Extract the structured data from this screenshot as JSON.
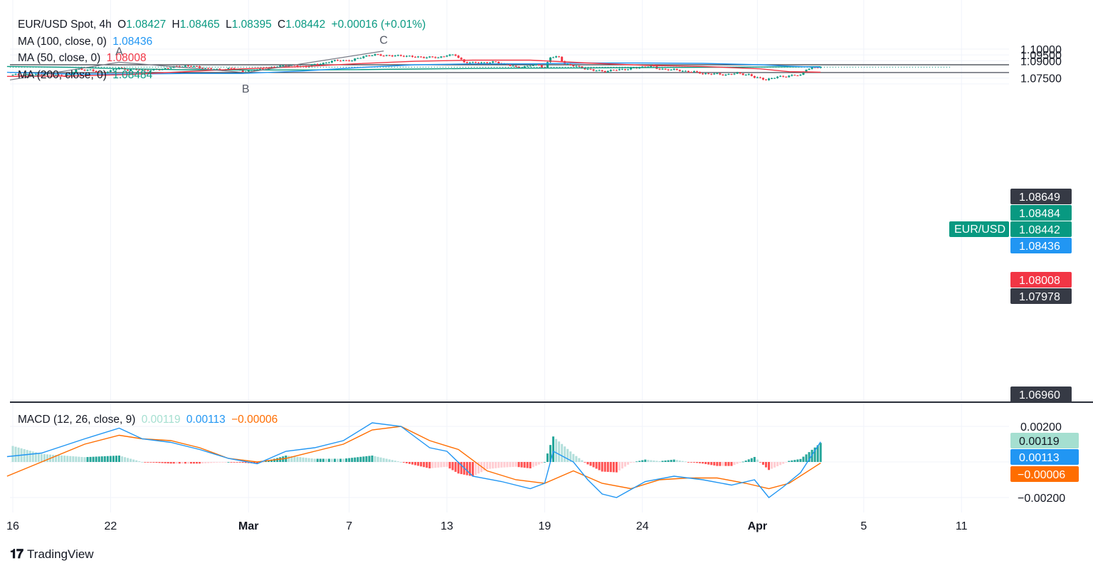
{
  "header": {
    "symbol": "EUR/USD Spot, 4h",
    "ohlc": [
      {
        "label": "O",
        "value": "1.08427"
      },
      {
        "label": "H",
        "value": "1.08465"
      },
      {
        "label": "L",
        "value": "1.08395"
      },
      {
        "label": "C",
        "value": "1.08442"
      }
    ],
    "change": "+0.00016 (+0.01%)"
  },
  "indicators": [
    {
      "label": "MA (100, close, 0)",
      "value": "1.08436",
      "color": "#2196f3"
    },
    {
      "label": "MA (50, close, 0)",
      "value": "1.08008",
      "color": "#f23645"
    },
    {
      "label": "MA (200, close, 0)",
      "value": "1.08484",
      "color": "#089981"
    }
  ],
  "macd": {
    "label": "MACD (12, 26, close, 9)",
    "hist_value": "0.00119",
    "macd_value": "0.00113",
    "signal_value": "−0.00006",
    "colors": {
      "hist": "#a5dfd0",
      "macd": "#2196f3",
      "signal": "#ff6d00"
    }
  },
  "price_axis": [
    "1.10000",
    "1.09500",
    "1.09000",
    "1.07500"
  ],
  "price_tags": [
    {
      "text": "1.08649",
      "bg": "#363a45",
      "y": 1.08649
    },
    {
      "text": "1.08484",
      "bg": "#089981",
      "y": 1.08484
    },
    {
      "text": "1.08442",
      "bg": "#089981",
      "y": 1.08442
    },
    {
      "text": "1.08436",
      "bg": "#2196f3",
      "y": 1.08436
    },
    {
      "text": "1.08008",
      "bg": "#f23645",
      "y": 1.08008
    },
    {
      "text": "1.07978",
      "bg": "#363a45",
      "y": 1.07978
    },
    {
      "text": "1.06960",
      "bg": "#363a45",
      "y": 1.0696
    }
  ],
  "symbol_tag": "EUR/USD",
  "macd_axis": [
    "0.00200",
    "−0.00200"
  ],
  "macd_tags": [
    {
      "text": "0.00119",
      "bg": "#a5dfd0",
      "fg": "#131722",
      "y": 0.00119
    },
    {
      "text": "0.00113",
      "bg": "#2196f3",
      "fg": "#ffffff",
      "y": 0.00113
    },
    {
      "text": "−0.00006",
      "bg": "#ff6d00",
      "fg": "#ffffff",
      "y": -6e-05
    }
  ],
  "time_axis": [
    {
      "label": "16",
      "x": 0
    },
    {
      "label": "22",
      "x": 34
    },
    {
      "label": "Mar",
      "x": 82
    },
    {
      "label": "7",
      "x": 117
    },
    {
      "label": "13",
      "x": 151
    },
    {
      "label": "19",
      "x": 185
    },
    {
      "label": "24",
      "x": 219
    },
    {
      "label": "Apr",
      "x": 259
    },
    {
      "label": "5",
      "x": 296
    },
    {
      "label": "11",
      "x": 330
    }
  ],
  "branding": "TradingView",
  "chart_data": {
    "type": "candlestick",
    "title": "EUR/USD Spot, 4h",
    "x_unit": "4h bars from the '16' tick",
    "ylim": [
      1.0695,
      1.1015
    ],
    "macd_ylim": [
      -0.0028,
      0.0025
    ],
    "horizontal_levels": [
      1.08649,
      1.07978,
      1.0696
    ],
    "current_price": 1.08442,
    "pattern_points": [
      {
        "label": "A",
        "x": 37,
        "y": 1.0887
      },
      {
        "label": "B",
        "x": 81,
        "y": 1.0797
      },
      {
        "label": "C",
        "x": 129,
        "y": 1.0984
      }
    ],
    "trend_lines": [
      [
        {
          "x": -1,
          "y": 1.0734
        },
        {
          "x": 37,
          "y": 1.0887
        },
        {
          "x": 81,
          "y": 1.0797
        },
        {
          "x": 129,
          "y": 1.0984
        }
      ]
    ],
    "price_path": [
      [
        0,
        1.0776
      ],
      [
        4,
        1.078
      ],
      [
        8,
        1.0779
      ],
      [
        12,
        1.0784
      ],
      [
        16,
        1.0773
      ],
      [
        20,
        1.0775
      ],
      [
        22,
        1.0827
      ],
      [
        26,
        1.0822
      ],
      [
        30,
        1.0798
      ],
      [
        34,
        1.081
      ],
      [
        37,
        1.084
      ],
      [
        40,
        1.082
      ],
      [
        44,
        1.0825
      ],
      [
        48,
        1.0815
      ],
      [
        52,
        1.083
      ],
      [
        56,
        1.0845
      ],
      [
        60,
        1.0855
      ],
      [
        64,
        1.0845
      ],
      [
        68,
        1.0832
      ],
      [
        72,
        1.082
      ],
      [
        76,
        1.0835
      ],
      [
        80,
        1.081
      ],
      [
        83,
        1.0815
      ],
      [
        86,
        1.0825
      ],
      [
        90,
        1.084
      ],
      [
        94,
        1.086
      ],
      [
        98,
        1.0855
      ],
      [
        102,
        1.085
      ],
      [
        106,
        1.087
      ],
      [
        110,
        1.089
      ],
      [
        114,
        1.0905
      ],
      [
        118,
        1.09
      ],
      [
        122,
        1.094
      ],
      [
        126,
        1.095
      ],
      [
        129,
        1.0948
      ],
      [
        132,
        1.094
      ],
      [
        136,
        1.0945
      ],
      [
        140,
        1.093
      ],
      [
        144,
        1.0932
      ],
      [
        148,
        1.0925
      ],
      [
        151,
        1.095
      ],
      [
        154,
        1.0945
      ],
      [
        157,
        1.089
      ],
      [
        160,
        1.088
      ],
      [
        164,
        1.0885
      ],
      [
        168,
        1.0885
      ],
      [
        172,
        1.087
      ],
      [
        175,
        1.084
      ],
      [
        178,
        1.085
      ],
      [
        180,
        1.086
      ],
      [
        183,
        1.086
      ],
      [
        185,
        1.084
      ],
      [
        187,
        1.093
      ],
      [
        190,
        1.093
      ],
      [
        192,
        1.0875
      ],
      [
        194,
        1.086
      ],
      [
        198,
        1.084
      ],
      [
        202,
        1.0815
      ],
      [
        206,
        1.081
      ],
      [
        210,
        1.082
      ],
      [
        214,
        1.083
      ],
      [
        218,
        1.084
      ],
      [
        222,
        1.086
      ],
      [
        224,
        1.083
      ],
      [
        228,
        1.0825
      ],
      [
        232,
        1.0815
      ],
      [
        236,
        1.0805
      ],
      [
        240,
        1.079
      ],
      [
        244,
        1.0785
      ],
      [
        248,
        1.078
      ],
      [
        252,
        1.079
      ],
      [
        256,
        1.078
      ],
      [
        258,
        1.0755
      ],
      [
        262,
        1.074
      ],
      [
        264,
        1.0745
      ],
      [
        266,
        1.076
      ],
      [
        270,
        1.077
      ],
      [
        274,
        1.0775
      ],
      [
        276,
        1.083
      ],
      [
        278,
        1.0836
      ],
      [
        280,
        1.0842
      ],
      [
        281,
        1.0844
      ]
    ],
    "ma_100": [
      [
        -2,
        1.08
      ],
      [
        20,
        1.0785
      ],
      [
        40,
        1.0785
      ],
      [
        60,
        1.079
      ],
      [
        80,
        1.079
      ],
      [
        100,
        1.081
      ],
      [
        120,
        1.084
      ],
      [
        140,
        1.0865
      ],
      [
        160,
        1.0873
      ],
      [
        180,
        1.0873
      ],
      [
        200,
        1.088
      ],
      [
        220,
        1.088
      ],
      [
        240,
        1.0877
      ],
      [
        260,
        1.0865
      ],
      [
        270,
        1.0853
      ],
      [
        281,
        1.08436
      ]
    ],
    "ma_50": [
      [
        -2,
        1.0765
      ],
      [
        20,
        1.0768
      ],
      [
        40,
        1.078
      ],
      [
        60,
        1.0805
      ],
      [
        80,
        1.083
      ],
      [
        100,
        1.0848
      ],
      [
        120,
        1.0875
      ],
      [
        140,
        1.0895
      ],
      [
        160,
        1.0905
      ],
      [
        180,
        1.0905
      ],
      [
        200,
        1.088
      ],
      [
        220,
        1.086
      ],
      [
        240,
        1.085
      ],
      [
        260,
        1.083
      ],
      [
        270,
        1.0805
      ],
      [
        281,
        1.08008
      ]
    ],
    "ma_200": [
      [
        -2,
        1.085
      ],
      [
        20,
        1.0843
      ],
      [
        40,
        1.083
      ],
      [
        60,
        1.0822
      ],
      [
        80,
        1.082
      ],
      [
        100,
        1.082
      ],
      [
        120,
        1.0823
      ],
      [
        140,
        1.0828
      ],
      [
        160,
        1.0833
      ],
      [
        180,
        1.0836
      ],
      [
        200,
        1.0838
      ],
      [
        220,
        1.0841
      ],
      [
        240,
        1.0843
      ],
      [
        260,
        1.0845
      ],
      [
        270,
        1.0847
      ],
      [
        281,
        1.08484
      ]
    ],
    "macd_line": [
      [
        -2,
        0.0003
      ],
      [
        10,
        0.0005
      ],
      [
        25,
        0.0013
      ],
      [
        37,
        0.0019
      ],
      [
        45,
        0.0013
      ],
      [
        55,
        0.0011
      ],
      [
        65,
        0.0007
      ],
      [
        75,
        0.0002
      ],
      [
        85,
        -0.0001
      ],
      [
        95,
        0.0006
      ],
      [
        105,
        0.0008
      ],
      [
        115,
        0.0012
      ],
      [
        125,
        0.0022
      ],
      [
        135,
        0.002
      ],
      [
        145,
        0.0008
      ],
      [
        151,
        0.0006
      ],
      [
        160,
        -0.0008
      ],
      [
        170,
        -0.0011
      ],
      [
        180,
        -0.0015
      ],
      [
        185,
        -0.0012
      ],
      [
        188,
        0.0006
      ],
      [
        195,
        0.0
      ],
      [
        200,
        -0.001
      ],
      [
        205,
        -0.0018
      ],
      [
        210,
        -0.002
      ],
      [
        220,
        -0.0011
      ],
      [
        230,
        -0.0008
      ],
      [
        240,
        -0.001
      ],
      [
        250,
        -0.0013
      ],
      [
        258,
        -0.001
      ],
      [
        263,
        -0.002
      ],
      [
        268,
        -0.0014
      ],
      [
        274,
        -0.0006
      ],
      [
        281,
        0.00113
      ]
    ],
    "signal_line": [
      [
        -2,
        -0.0008
      ],
      [
        10,
        0.0
      ],
      [
        25,
        0.001
      ],
      [
        37,
        0.0015
      ],
      [
        45,
        0.0013
      ],
      [
        55,
        0.0012
      ],
      [
        65,
        0.0008
      ],
      [
        75,
        0.0002
      ],
      [
        85,
        0.0
      ],
      [
        95,
        0.0002
      ],
      [
        105,
        0.0006
      ],
      [
        115,
        0.001
      ],
      [
        125,
        0.0018
      ],
      [
        135,
        0.002
      ],
      [
        145,
        0.0012
      ],
      [
        155,
        0.0007
      ],
      [
        165,
        -0.0005
      ],
      [
        175,
        -0.001
      ],
      [
        185,
        -0.0012
      ],
      [
        195,
        -0.0005
      ],
      [
        205,
        -0.0012
      ],
      [
        215,
        -0.0015
      ],
      [
        225,
        -0.001
      ],
      [
        235,
        -0.0009
      ],
      [
        245,
        -0.0009
      ],
      [
        255,
        -0.0012
      ],
      [
        263,
        -0.0015
      ],
      [
        270,
        -0.0012
      ],
      [
        281,
        -6e-05
      ]
    ]
  }
}
